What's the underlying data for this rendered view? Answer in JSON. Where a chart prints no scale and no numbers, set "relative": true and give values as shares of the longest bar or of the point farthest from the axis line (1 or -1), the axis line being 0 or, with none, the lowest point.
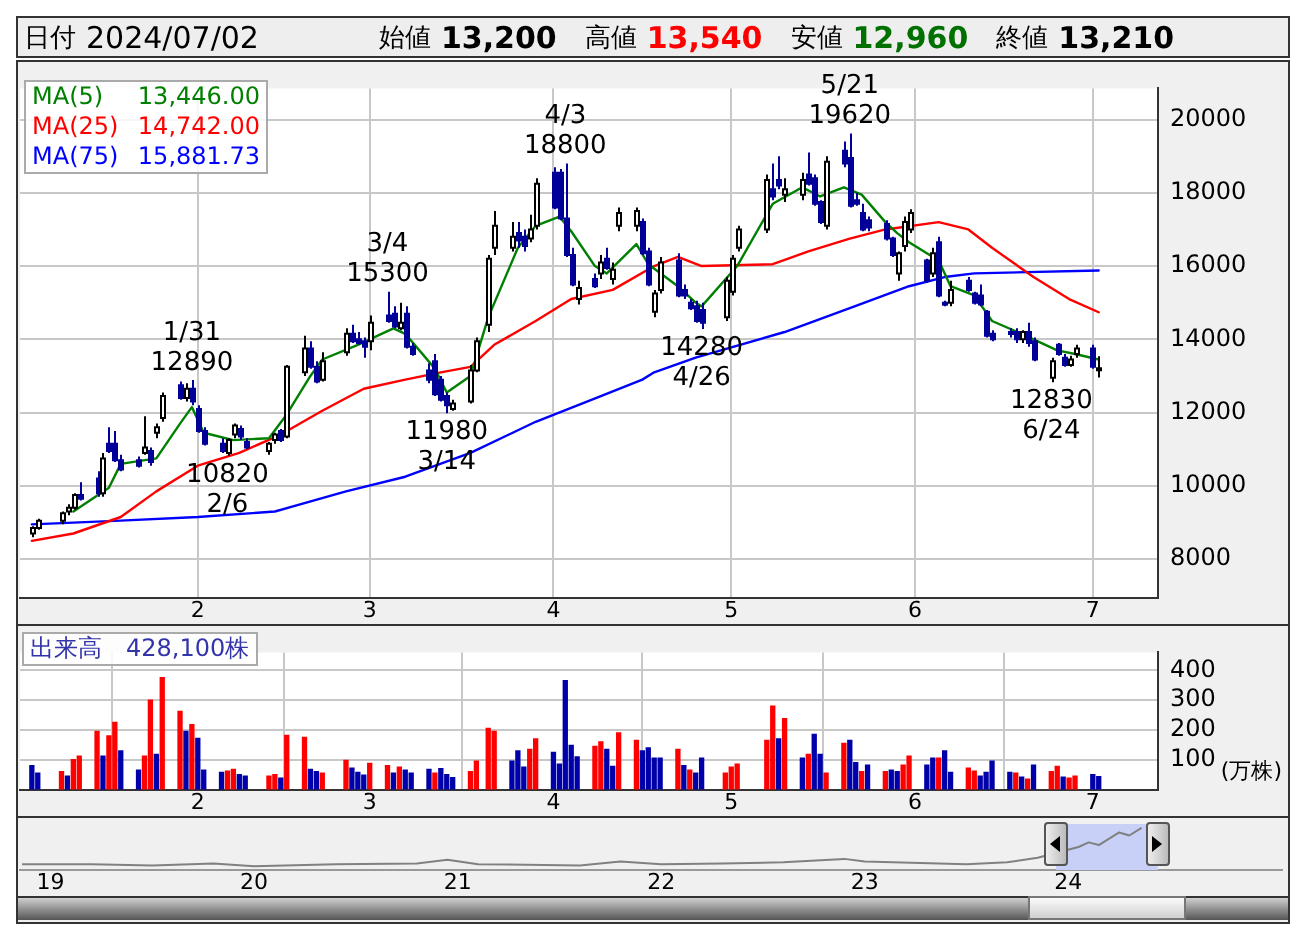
{
  "chart_data": [
    {
      "type": "other",
      "annotations": [
        "日付",
        "2024/07/02",
        "始値",
        "13,200",
        "高値",
        "13,540",
        "安値",
        "12,960",
        "終値",
        "13,210"
      ],
      "colors": [
        "#000000",
        "#000000",
        "#000000",
        "#000000",
        "#000000",
        "#ff0000",
        "#000000",
        "#007000",
        "#000000",
        "#000000"
      ]
    },
    {
      "type": "candlestick",
      "grid": true,
      "legend": "top left",
      "ylim": [
        6950,
        20850
      ],
      "yticks": [
        8000,
        10000,
        12000,
        14000,
        16000,
        18000,
        20000
      ],
      "xlim": [
        "2024-01-02",
        "2024-07-12"
      ],
      "xticks": [
        {
          "value": "2024-02-01",
          "label": "2"
        },
        {
          "value": "2024-03-01",
          "label": "3"
        },
        {
          "value": "2024-04-01",
          "label": "4"
        },
        {
          "value": "2024-05-01",
          "label": "5"
        },
        {
          "value": "2024-06-01",
          "label": "6"
        },
        {
          "value": "2024-07-01",
          "label": "7"
        }
      ],
      "x": [
        "2024-01-04",
        "2024-01-05",
        "2024-01-09",
        "2024-01-10",
        "2024-01-11",
        "2024-01-12",
        "2024-01-15",
        "2024-01-16",
        "2024-01-17",
        "2024-01-18",
        "2024-01-19",
        "2024-01-22",
        "2024-01-23",
        "2024-01-24",
        "2024-01-25",
        "2024-01-26",
        "2024-01-29",
        "2024-01-30",
        "2024-01-31",
        "2024-02-01",
        "2024-02-02",
        "2024-02-05",
        "2024-02-06",
        "2024-02-07",
        "2024-02-08",
        "2024-02-09",
        "2024-02-13",
        "2024-02-14",
        "2024-02-15",
        "2024-02-16",
        "2024-02-19",
        "2024-02-20",
        "2024-02-21",
        "2024-02-22",
        "2024-02-26",
        "2024-02-27",
        "2024-02-28",
        "2024-02-29",
        "2024-03-01",
        "2024-03-04",
        "2024-03-05",
        "2024-03-06",
        "2024-03-07",
        "2024-03-08",
        "2024-03-11",
        "2024-03-12",
        "2024-03-13",
        "2024-03-14",
        "2024-03-15",
        "2024-03-18",
        "2024-03-19",
        "2024-03-21",
        "2024-03-22",
        "2024-03-25",
        "2024-03-26",
        "2024-03-27",
        "2024-03-28",
        "2024-03-29",
        "2024-04-01",
        "2024-04-02",
        "2024-04-03",
        "2024-04-04",
        "2024-04-05",
        "2024-04-08",
        "2024-04-09",
        "2024-04-10",
        "2024-04-11",
        "2024-04-12",
        "2024-04-15",
        "2024-04-16",
        "2024-04-17",
        "2024-04-18",
        "2024-04-19",
        "2024-04-22",
        "2024-04-23",
        "2024-04-24",
        "2024-04-25",
        "2024-04-26",
        "2024-04-30",
        "2024-05-01",
        "2024-05-02",
        "2024-05-07",
        "2024-05-08",
        "2024-05-09",
        "2024-05-10",
        "2024-05-13",
        "2024-05-14",
        "2024-05-15",
        "2024-05-16",
        "2024-05-17",
        "2024-05-20",
        "2024-05-21",
        "2024-05-22",
        "2024-05-23",
        "2024-05-24",
        "2024-05-27",
        "2024-05-28",
        "2024-05-29",
        "2024-05-30",
        "2024-05-31",
        "2024-06-03",
        "2024-06-04",
        "2024-06-05",
        "2024-06-06",
        "2024-06-07",
        "2024-06-10",
        "2024-06-11",
        "2024-06-12",
        "2024-06-13",
        "2024-06-14",
        "2024-06-17",
        "2024-06-18",
        "2024-06-19",
        "2024-06-20",
        "2024-06-21",
        "2024-06-24",
        "2024-06-25",
        "2024-06-26",
        "2024-06-27",
        "2024-06-28",
        "2024-07-01",
        "2024-07-02"
      ],
      "ohlc": [
        [
          8700,
          8900,
          8600,
          8850
        ],
        [
          8850,
          9100,
          8800,
          9050
        ],
        [
          9050,
          9300,
          8950,
          9250
        ],
        [
          9300,
          9500,
          9200,
          9400
        ],
        [
          9400,
          9800,
          9350,
          9750
        ],
        [
          9750,
          10100,
          9600,
          9650
        ],
        [
          10200,
          10400,
          9700,
          9800
        ],
        [
          9800,
          10900,
          9700,
          10750
        ],
        [
          11150,
          11600,
          10900,
          10950
        ],
        [
          11150,
          11500,
          10650,
          10700
        ],
        [
          10700,
          10850,
          10400,
          10450
        ],
        [
          10700,
          10800,
          10500,
          10550
        ],
        [
          10900,
          11900,
          10850,
          11050
        ],
        [
          10950,
          11050,
          10550,
          10650
        ],
        [
          11450,
          11700,
          11300,
          11600
        ],
        [
          11850,
          12550,
          11750,
          12450
        ],
        [
          12750,
          12850,
          12350,
          12400
        ],
        [
          12400,
          12800,
          12300,
          12650
        ],
        [
          12650,
          12890,
          12200,
          12300
        ],
        [
          12100,
          12200,
          11450,
          11500
        ],
        [
          11500,
          11600,
          11100,
          11150
        ],
        [
          11150,
          11300,
          10900,
          10950
        ],
        [
          10900,
          11300,
          10820,
          11250
        ],
        [
          11400,
          11700,
          11300,
          11650
        ],
        [
          11550,
          11650,
          11250,
          11350
        ],
        [
          11200,
          11300,
          11000,
          11050
        ],
        [
          10950,
          11200,
          10850,
          11150
        ],
        [
          11250,
          11450,
          11150,
          11400
        ],
        [
          11500,
          11550,
          11200,
          11250
        ],
        [
          11350,
          13300,
          11300,
          13250
        ],
        [
          13100,
          14100,
          13000,
          13750
        ],
        [
          13750,
          13950,
          13200,
          13250
        ],
        [
          13250,
          13400,
          12800,
          12850
        ],
        [
          12900,
          13650,
          12850,
          13400
        ],
        [
          13650,
          14300,
          13550,
          14150
        ],
        [
          14150,
          14400,
          13900,
          13950
        ],
        [
          14000,
          14200,
          13850,
          13900
        ],
        [
          13950,
          14050,
          13500,
          13800
        ],
        [
          13950,
          14650,
          13700,
          14450
        ],
        [
          14650,
          15300,
          14450,
          14500
        ],
        [
          14700,
          14900,
          14300,
          14350
        ],
        [
          14300,
          15000,
          14250,
          14450
        ],
        [
          14700,
          14900,
          13750,
          13800
        ],
        [
          13800,
          13900,
          13550,
          13600
        ],
        [
          13150,
          13350,
          12800,
          12900
        ],
        [
          13400,
          13600,
          12450,
          12500
        ],
        [
          12900,
          13000,
          12300,
          12350
        ],
        [
          12450,
          12550,
          11980,
          12200
        ],
        [
          12100,
          12350,
          12050,
          12250
        ],
        [
          12300,
          13300,
          12250,
          13150
        ],
        [
          13150,
          14050,
          13100,
          13950
        ],
        [
          14400,
          16300,
          14200,
          16200
        ],
        [
          16500,
          17500,
          16300,
          17100
        ],
        [
          16500,
          17200,
          16400,
          16800
        ],
        [
          16900,
          17200,
          16500,
          16700
        ],
        [
          16800,
          17000,
          16400,
          16550
        ],
        [
          16750,
          17400,
          16650,
          17000
        ],
        [
          17100,
          18400,
          17000,
          18250
        ],
        [
          18550,
          18700,
          17550,
          17600
        ],
        [
          18550,
          18650,
          17250,
          17300
        ],
        [
          17300,
          18800,
          16250,
          16300
        ],
        [
          16300,
          16500,
          15450,
          15500
        ],
        [
          15100,
          15600,
          14950,
          15400
        ],
        [
          15650,
          15800,
          15400,
          15450
        ],
        [
          15800,
          16300,
          15650,
          16100
        ],
        [
          16200,
          16500,
          15900,
          15950
        ],
        [
          15650,
          16100,
          15500,
          15900
        ],
        [
          17100,
          17600,
          16950,
          17450
        ],
        [
          17100,
          17600,
          16950,
          17500
        ],
        [
          17200,
          17300,
          16300,
          16350
        ],
        [
          16400,
          16500,
          15450,
          15500
        ],
        [
          14750,
          15350,
          14600,
          15250
        ],
        [
          15350,
          16250,
          15250,
          16100
        ],
        [
          16150,
          16350,
          15150,
          15200
        ],
        [
          15350,
          15500,
          15100,
          15200
        ],
        [
          15000,
          15100,
          14800,
          14850
        ],
        [
          14900,
          15050,
          14450,
          14500
        ],
        [
          14800,
          15000,
          14280,
          14450
        ],
        [
          14600,
          15700,
          14500,
          15600
        ],
        [
          15300,
          16300,
          15200,
          16200
        ],
        [
          16500,
          17100,
          16400,
          17000
        ],
        [
          17000,
          18500,
          16900,
          18350
        ],
        [
          18100,
          18800,
          17800,
          17900
        ],
        [
          18350,
          19000,
          18100,
          18200
        ],
        [
          17950,
          18400,
          17750,
          18100
        ],
        [
          17950,
          18550,
          17800,
          18350
        ],
        [
          18500,
          19100,
          18200,
          18250
        ],
        [
          18400,
          18500,
          17650,
          17700
        ],
        [
          17750,
          17800,
          17150,
          17200
        ],
        [
          17100,
          19000,
          17000,
          18850
        ],
        [
          19150,
          19400,
          18700,
          18800
        ],
        [
          18950,
          19620,
          17600,
          17650
        ],
        [
          17800,
          18000,
          17650,
          17700
        ],
        [
          17450,
          17700,
          16950,
          17000
        ],
        [
          17250,
          17350,
          16950,
          17050
        ],
        [
          17150,
          17250,
          16700,
          16750
        ],
        [
          16750,
          16800,
          16250,
          16300
        ],
        [
          15800,
          16400,
          15600,
          16350
        ],
        [
          16550,
          17350,
          16400,
          17200
        ],
        [
          17000,
          17550,
          16900,
          17450
        ],
        [
          16150,
          16200,
          15550,
          15600
        ],
        [
          15800,
          16500,
          15700,
          16350
        ],
        [
          16650,
          16800,
          15150,
          15200
        ],
        [
          15000,
          15050,
          14900,
          14950
        ],
        [
          15000,
          15600,
          14900,
          15350
        ],
        [
          15600,
          15700,
          15300,
          15350
        ],
        [
          15250,
          15300,
          14950,
          15000
        ],
        [
          15200,
          15500,
          14900,
          14950
        ],
        [
          14750,
          14800,
          14050,
          14100
        ],
        [
          14150,
          14250,
          13950,
          14000
        ],
        [
          14200,
          14300,
          14050,
          14150
        ],
        [
          14200,
          14300,
          13900,
          14000
        ],
        [
          14000,
          14250,
          13900,
          14200
        ],
        [
          14200,
          14450,
          13800,
          13900
        ],
        [
          13950,
          14050,
          13400,
          13450
        ],
        [
          12950,
          13500,
          12830,
          13400
        ],
        [
          13850,
          13900,
          13550,
          13600
        ],
        [
          13500,
          13600,
          13250,
          13300
        ],
        [
          13300,
          13550,
          13250,
          13450
        ],
        [
          13600,
          13850,
          13500,
          13750
        ],
        [
          13750,
          13850,
          13200,
          13250
        ],
        [
          13200,
          13540,
          12960,
          13210
        ]
      ],
      "colors": [
        "#ffffff",
        "#ffffff",
        "#ffffff",
        "#ffffff",
        "#ffffff",
        "#000099",
        "#000099",
        "#ffffff",
        "#000099",
        "#000099",
        "#000099",
        "#000099",
        "#ffffff",
        "#000099",
        "#ffffff",
        "#ffffff",
        "#000099",
        "#ffffff",
        "#000099",
        "#000099",
        "#000099",
        "#000099",
        "#ffffff",
        "#ffffff",
        "#000099",
        "#000099",
        "#ffffff",
        "#ffffff",
        "#000099",
        "#ffffff",
        "#ffffff",
        "#000099",
        "#000099",
        "#ffffff",
        "#ffffff",
        "#000099",
        "#000099",
        "#000099",
        "#ffffff",
        "#000099",
        "#000099",
        "#ffffff",
        "#000099",
        "#000099",
        "#000099",
        "#000099",
        "#000099",
        "#000099",
        "#ffffff",
        "#ffffff",
        "#ffffff",
        "#ffffff",
        "#ffffff",
        "#ffffff",
        "#000099",
        "#000099",
        "#ffffff",
        "#ffffff",
        "#000099",
        "#000099",
        "#000099",
        "#000099",
        "#ffffff",
        "#000099",
        "#ffffff",
        "#000099",
        "#ffffff",
        "#ffffff",
        "#ffffff",
        "#000099",
        "#000099",
        "#ffffff",
        "#ffffff",
        "#000099",
        "#000099",
        "#000099",
        "#000099",
        "#000099",
        "#ffffff",
        "#ffffff",
        "#ffffff",
        "#ffffff",
        "#000099",
        "#000099",
        "#ffffff",
        "#ffffff",
        "#000099",
        "#000099",
        "#000099",
        "#ffffff",
        "#000099",
        "#000099",
        "#000099",
        "#000099",
        "#000099",
        "#000099",
        "#000099",
        "#ffffff",
        "#ffffff",
        "#ffffff",
        "#000099",
        "#ffffff",
        "#000099",
        "#000099",
        "#ffffff",
        "#000099",
        "#000099",
        "#000099",
        "#000099",
        "#000099",
        "#000099",
        "#000099",
        "#ffffff",
        "#000099",
        "#000099",
        "#ffffff",
        "#000099",
        "#000099",
        "#ffffff",
        "#ffffff",
        "#000099",
        "#ffffff"
      ],
      "annotations": [
        {
          "text": "1/31",
          "x": "2024-01-31",
          "y": 12890
        },
        {
          "text": "12890",
          "x": "2024-01-31",
          "y": 12890
        },
        {
          "text": "10820",
          "x": "2024-02-06",
          "y": 10820
        },
        {
          "text": "2/6",
          "x": "2024-02-06",
          "y": 10820
        },
        {
          "text": "3/4",
          "x": "2024-03-04",
          "y": 15300
        },
        {
          "text": "15300",
          "x": "2024-03-04",
          "y": 15300
        },
        {
          "text": "11980",
          "x": "2024-03-14",
          "y": 11980
        },
        {
          "text": "3/14",
          "x": "2024-03-14",
          "y": 11980
        },
        {
          "text": "4/3",
          "x": "2024-04-03",
          "y": 18800
        },
        {
          "text": "18800",
          "x": "2024-04-03",
          "y": 18800
        },
        {
          "text": "14280",
          "x": "2024-04-26",
          "y": 14280
        },
        {
          "text": "4/26",
          "x": "2024-04-26",
          "y": 14280
        },
        {
          "text": "5/21",
          "x": "2024-05-21",
          "y": 19620
        },
        {
          "text": "19620",
          "x": "2024-05-21",
          "y": 19620
        },
        {
          "text": "12830",
          "x": "2024-06-24",
          "y": 12830
        },
        {
          "text": "6/24",
          "x": "2024-06-24",
          "y": 12830
        }
      ],
      "series": [
        {
          "name": "MA(5) 13,446.00",
          "type": "line",
          "color": "#008000",
          "x": [
            "2024-01-11",
            "2024-01-17",
            "2024-01-19",
            "2024-01-25",
            "2024-01-29",
            "2024-01-31",
            "2024-02-02",
            "2024-02-07",
            "2024-02-13",
            "2024-02-16",
            "2024-02-20",
            "2024-02-22",
            "2024-02-28",
            "2024-03-05",
            "2024-03-07",
            "2024-03-12",
            "2024-03-14",
            "2024-03-18",
            "2024-03-21",
            "2024-03-26",
            "2024-03-29",
            "2024-04-02",
            "2024-04-04",
            "2024-04-08",
            "2024-04-10",
            "2024-04-15",
            "2024-04-17",
            "2024-04-22",
            "2024-04-25",
            "2024-04-26",
            "2024-05-02",
            "2024-05-08",
            "2024-05-13",
            "2024-05-16",
            "2024-05-20",
            "2024-05-23",
            "2024-05-27",
            "2024-05-29",
            "2024-05-31",
            "2024-06-05",
            "2024-06-07",
            "2024-06-11",
            "2024-06-14",
            "2024-06-19",
            "2024-06-25",
            "2024-06-28",
            "2024-07-02"
          ],
          "values": [
            9300,
            9950,
            10600,
            10750,
            11700,
            12150,
            11450,
            11250,
            11300,
            11950,
            13000,
            13450,
            13850,
            14300,
            14150,
            13200,
            12550,
            13000,
            14600,
            16500,
            17100,
            17350,
            16950,
            16000,
            15800,
            16600,
            16050,
            15450,
            15000,
            14900,
            16000,
            17700,
            18150,
            17900,
            18150,
            17950,
            17200,
            16900,
            16650,
            16150,
            15450,
            15200,
            14500,
            14150,
            13700,
            13600,
            13450
          ]
        },
        {
          "name": "MA(25) 14,742.00",
          "type": "line",
          "color": "#ff0000",
          "x": [
            "2024-01-04",
            "2024-01-11",
            "2024-01-19",
            "2024-01-25",
            "2024-02-01",
            "2024-02-08",
            "2024-02-15",
            "2024-02-22",
            "2024-02-29",
            "2024-03-07",
            "2024-03-13",
            "2024-03-18",
            "2024-03-22",
            "2024-03-29",
            "2024-04-04",
            "2024-04-11",
            "2024-04-18",
            "2024-04-22",
            "2024-04-26",
            "2024-05-08",
            "2024-05-14",
            "2024-05-21",
            "2024-05-27",
            "2024-06-05",
            "2024-06-10",
            "2024-06-14",
            "2024-06-21",
            "2024-06-27",
            "2024-07-02"
          ],
          "values": [
            8500,
            8700,
            9150,
            9850,
            10550,
            10900,
            11400,
            12050,
            12650,
            12900,
            13100,
            13250,
            13850,
            14500,
            15100,
            15350,
            16000,
            16250,
            16000,
            16050,
            16400,
            16750,
            17000,
            17200,
            17000,
            16500,
            15700,
            15100,
            14740
          ]
        },
        {
          "name": "MA(75) 15,881.73",
          "type": "line",
          "color": "#0000ff",
          "x": [
            "2024-01-04",
            "2024-01-19",
            "2024-02-01",
            "2024-02-14",
            "2024-02-26",
            "2024-03-07",
            "2024-03-18",
            "2024-03-29",
            "2024-04-09",
            "2024-04-16",
            "2024-04-18",
            "2024-04-25",
            "2024-05-10",
            "2024-05-21",
            "2024-05-31",
            "2024-06-06",
            "2024-06-11",
            "2024-07-02"
          ],
          "values": [
            8950,
            9050,
            9150,
            9300,
            9850,
            10250,
            10900,
            11750,
            12450,
            12900,
            13100,
            13500,
            14200,
            14850,
            15450,
            15700,
            15800,
            15880
          ]
        }
      ]
    },
    {
      "type": "bar",
      "title": "出来高　428,100株",
      "ylabel": "(万株)",
      "grid": true,
      "ylim": [
        0,
        460
      ],
      "yticks": [
        100,
        200,
        300,
        400
      ],
      "xlim": [
        "2024-01-02",
        "2024-07-12"
      ],
      "xticks": [
        {
          "value": "2024-02-01",
          "label": "2"
        },
        {
          "value": "2024-03-01",
          "label": "3"
        },
        {
          "value": "2024-04-01",
          "label": "4"
        },
        {
          "value": "2024-05-01",
          "label": "5"
        },
        {
          "value": "2024-06-01",
          "label": "6"
        },
        {
          "value": "2024-07-01",
          "label": "7"
        }
      ],
      "x": [
        "2024-01-04",
        "2024-01-05",
        "2024-01-09",
        "2024-01-10",
        "2024-01-11",
        "2024-01-12",
        "2024-01-15",
        "2024-01-16",
        "2024-01-17",
        "2024-01-18",
        "2024-01-19",
        "2024-01-22",
        "2024-01-23",
        "2024-01-24",
        "2024-01-25",
        "2024-01-26",
        "2024-01-29",
        "2024-01-30",
        "2024-01-31",
        "2024-02-01",
        "2024-02-02",
        "2024-02-05",
        "2024-02-06",
        "2024-02-07",
        "2024-02-08",
        "2024-02-09",
        "2024-02-13",
        "2024-02-14",
        "2024-02-15",
        "2024-02-16",
        "2024-02-19",
        "2024-02-20",
        "2024-02-21",
        "2024-02-22",
        "2024-02-26",
        "2024-02-27",
        "2024-02-28",
        "2024-02-29",
        "2024-03-01",
        "2024-03-04",
        "2024-03-05",
        "2024-03-06",
        "2024-03-07",
        "2024-03-08",
        "2024-03-11",
        "2024-03-12",
        "2024-03-13",
        "2024-03-14",
        "2024-03-15",
        "2024-03-18",
        "2024-03-19",
        "2024-03-21",
        "2024-03-22",
        "2024-03-25",
        "2024-03-26",
        "2024-03-27",
        "2024-03-28",
        "2024-03-29",
        "2024-04-01",
        "2024-04-02",
        "2024-04-03",
        "2024-04-04",
        "2024-04-05",
        "2024-04-08",
        "2024-04-09",
        "2024-04-10",
        "2024-04-11",
        "2024-04-12",
        "2024-04-15",
        "2024-04-16",
        "2024-04-17",
        "2024-04-18",
        "2024-04-19",
        "2024-04-22",
        "2024-04-23",
        "2024-04-24",
        "2024-04-25",
        "2024-04-26",
        "2024-04-30",
        "2024-05-01",
        "2024-05-02",
        "2024-05-07",
        "2024-05-08",
        "2024-05-09",
        "2024-05-10",
        "2024-05-13",
        "2024-05-14",
        "2024-05-15",
        "2024-05-16",
        "2024-05-17",
        "2024-05-20",
        "2024-05-21",
        "2024-05-22",
        "2024-05-23",
        "2024-05-24",
        "2024-05-27",
        "2024-05-28",
        "2024-05-29",
        "2024-05-30",
        "2024-05-31",
        "2024-06-03",
        "2024-06-04",
        "2024-06-05",
        "2024-06-06",
        "2024-06-07",
        "2024-06-10",
        "2024-06-11",
        "2024-06-12",
        "2024-06-13",
        "2024-06-14",
        "2024-06-17",
        "2024-06-18",
        "2024-06-19",
        "2024-06-20",
        "2024-06-21",
        "2024-06-24",
        "2024-06-25",
        "2024-06-26",
        "2024-06-27",
        "2024-06-28",
        "2024-07-01",
        "2024-07-02"
      ],
      "values": [
        80,
        55,
        60,
        45,
        100,
        112,
        195,
        112,
        180,
        225,
        130,
        65,
        112,
        300,
        118,
        375,
        262,
        195,
        218,
        172,
        65,
        58,
        62,
        68,
        50,
        45,
        45,
        50,
        38,
        182,
        175,
        68,
        60,
        55,
        98,
        72,
        58,
        48,
        88,
        80,
        55,
        75,
        65,
        55,
        68,
        55,
        70,
        50,
        40,
        60,
        95,
        205,
        195,
        95,
        130,
        75,
        135,
        170,
        125,
        85,
        365,
        148,
        110,
        145,
        160,
        135,
        78,
        190,
        165,
        130,
        140,
        105,
        105,
        135,
        80,
        65,
        55,
        105,
        55,
        75,
        85,
        165,
        280,
        170,
        238,
        105,
        118,
        185,
        118,
        55,
        155,
        165,
        90,
        60,
        82,
        60,
        65,
        60,
        82,
        112,
        82,
        105,
        105,
        130,
        58,
        72,
        62,
        45,
        58,
        95,
        58,
        55,
        42,
        35,
        82,
        60,
        78,
        42,
        38,
        45,
        50,
        43
      ],
      "colors": [
        "#0000aa",
        "#0000aa",
        "#ff0000",
        "#0000aa",
        "#ff0000",
        "#ff0000",
        "#ff0000",
        "#0000aa",
        "#ff0000",
        "#ff0000",
        "#0000aa",
        "#0000aa",
        "#ff0000",
        "#ff0000",
        "#0000aa",
        "#ff0000",
        "#ff0000",
        "#0000aa",
        "#ff0000",
        "#0000aa",
        "#0000aa",
        "#0000aa",
        "#ff0000",
        "#ff0000",
        "#0000aa",
        "#0000aa",
        "#ff0000",
        "#ff0000",
        "#0000aa",
        "#ff0000",
        "#ff0000",
        "#0000aa",
        "#0000aa",
        "#ff0000",
        "#ff0000",
        "#0000aa",
        "#0000aa",
        "#0000aa",
        "#ff0000",
        "#ff0000",
        "#0000aa",
        "#ff0000",
        "#0000aa",
        "#0000aa",
        "#0000aa",
        "#ff0000",
        "#0000aa",
        "#0000aa",
        "#0000aa",
        "#ff0000",
        "#ff0000",
        "#ff0000",
        "#ff0000",
        "#0000aa",
        "#0000aa",
        "#0000aa",
        "#ff0000",
        "#ff0000",
        "#0000aa",
        "#0000aa",
        "#0000aa",
        "#0000aa",
        "#0000aa",
        "#ff0000",
        "#ff0000",
        "#0000aa",
        "#0000aa",
        "#ff0000",
        "#ff0000",
        "#0000aa",
        "#0000aa",
        "#0000aa",
        "#0000aa",
        "#ff0000",
        "#0000aa",
        "#ff0000",
        "#0000aa",
        "#0000aa",
        "#ff0000",
        "#ff0000",
        "#ff0000",
        "#ff0000",
        "#ff0000",
        "#0000aa",
        "#ff0000",
        "#0000aa",
        "#ff0000",
        "#0000aa",
        "#0000aa",
        "#ff0000",
        "#ff0000",
        "#0000aa",
        "#0000aa",
        "#ff0000",
        "#0000aa",
        "#ff0000",
        "#0000aa",
        "#0000aa",
        "#ff0000",
        "#ff0000",
        "#0000aa",
        "#0000aa",
        "#ff0000",
        "#0000aa",
        "#0000aa",
        "#ff0000",
        "#ff0000",
        "#0000aa",
        "#0000aa",
        "#0000aa",
        "#0000aa",
        "#ff0000",
        "#0000aa",
        "#ff0000",
        "#0000aa",
        "#ff0000",
        "#ff0000",
        "#0000aa",
        "#ff0000",
        "#ff0000",
        "#0000aa",
        "#0000aa"
      ]
    },
    {
      "type": "line",
      "relative": true,
      "color": "#808080",
      "xlim": [
        18.85,
        25.05
      ],
      "xticks": [
        19,
        20,
        21,
        22,
        23,
        24
      ],
      "bands": [
        {
          "axis": "x",
          "from": 23.94,
          "to": 24.44,
          "color": "#c8d0f8"
        }
      ],
      "x": [
        18.86,
        19.2,
        19.5,
        19.8,
        20.0,
        20.4,
        20.8,
        20.95,
        21.1,
        21.6,
        21.8,
        22.0,
        22.3,
        22.6,
        22.9,
        23.0,
        23.5,
        23.7,
        23.85,
        24.05,
        24.1,
        24.15,
        24.25,
        24.3,
        24.36
      ],
      "values": [
        0.05,
        0.05,
        0.02,
        0.07,
        0,
        0.05,
        0.07,
        0.17,
        0.05,
        0.02,
        0.12,
        0.05,
        0.07,
        0.1,
        0.19,
        0.12,
        0.05,
        0.1,
        0.22,
        0.5,
        0.62,
        0.55,
        0.88,
        0.8,
        1
      ]
    }
  ]
}
